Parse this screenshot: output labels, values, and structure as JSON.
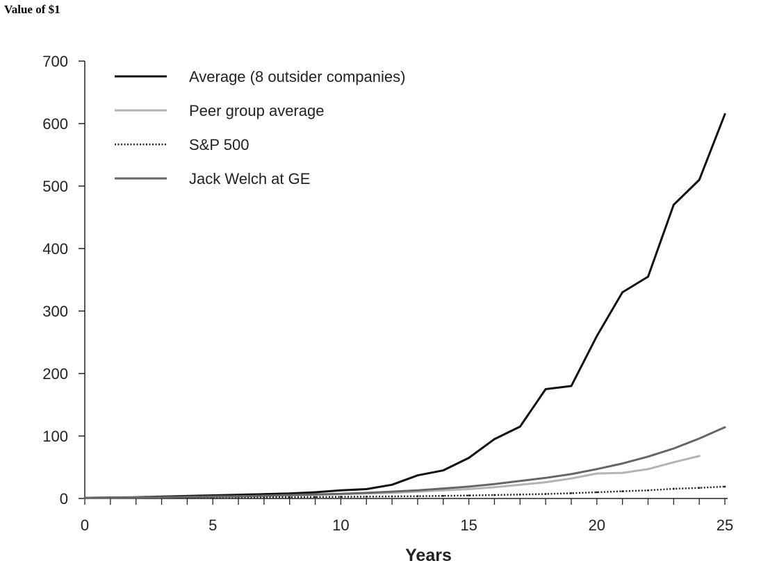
{
  "title": "Value of $1",
  "chart_data": {
    "type": "line",
    "title": "Value of $1",
    "xlabel": "Years",
    "ylabel": "",
    "xlim": [
      0,
      25
    ],
    "ylim": [
      0,
      700
    ],
    "xticks": [
      0,
      5,
      10,
      15,
      20,
      25
    ],
    "yticks": [
      0,
      100,
      200,
      300,
      400,
      500,
      600,
      700
    ],
    "grid": false,
    "legend_position": "top-left",
    "x": [
      0,
      1,
      2,
      3,
      4,
      5,
      6,
      7,
      8,
      9,
      10,
      11,
      12,
      13,
      14,
      15,
      16,
      17,
      18,
      19,
      20,
      21,
      22,
      23,
      24,
      25
    ],
    "series": [
      {
        "name": "Average (8 outsider companies)",
        "color": "#111111",
        "style": "solid",
        "values": [
          1,
          1.5,
          2,
          3,
          4,
          5,
          6,
          7,
          8,
          10,
          13,
          15,
          22,
          37,
          45,
          65,
          95,
          115,
          175,
          180,
          260,
          330,
          355,
          470,
          510,
          615
        ]
      },
      {
        "name": "Peer group average",
        "color": "#b3b3b3",
        "style": "solid",
        "values": [
          1,
          1.2,
          1.5,
          2,
          2.5,
          3,
          3.5,
          4,
          5,
          6,
          7,
          8,
          9,
          11,
          13,
          15,
          18,
          22,
          26,
          32,
          40,
          41,
          47,
          58,
          68,
          null
        ]
      },
      {
        "name": "S&P 500",
        "color": "#222222",
        "style": "dotted",
        "values": [
          1,
          1,
          1.1,
          1.2,
          1.3,
          1.5,
          1.7,
          1.9,
          2.1,
          2.4,
          2.7,
          3,
          3.3,
          3.7,
          4.2,
          4.8,
          5.5,
          6.3,
          7.2,
          8.5,
          10,
          11.5,
          13,
          15.5,
          17,
          19
        ]
      },
      {
        "name": "Jack Welch at GE",
        "color": "#666666",
        "style": "solid",
        "values": [
          1,
          1.3,
          1.6,
          2,
          2.5,
          3,
          3.5,
          4.5,
          5.5,
          6.5,
          7.5,
          9,
          11,
          13,
          16,
          19,
          23,
          28,
          33,
          39,
          47,
          56,
          67,
          80,
          96,
          114
        ]
      }
    ]
  }
}
